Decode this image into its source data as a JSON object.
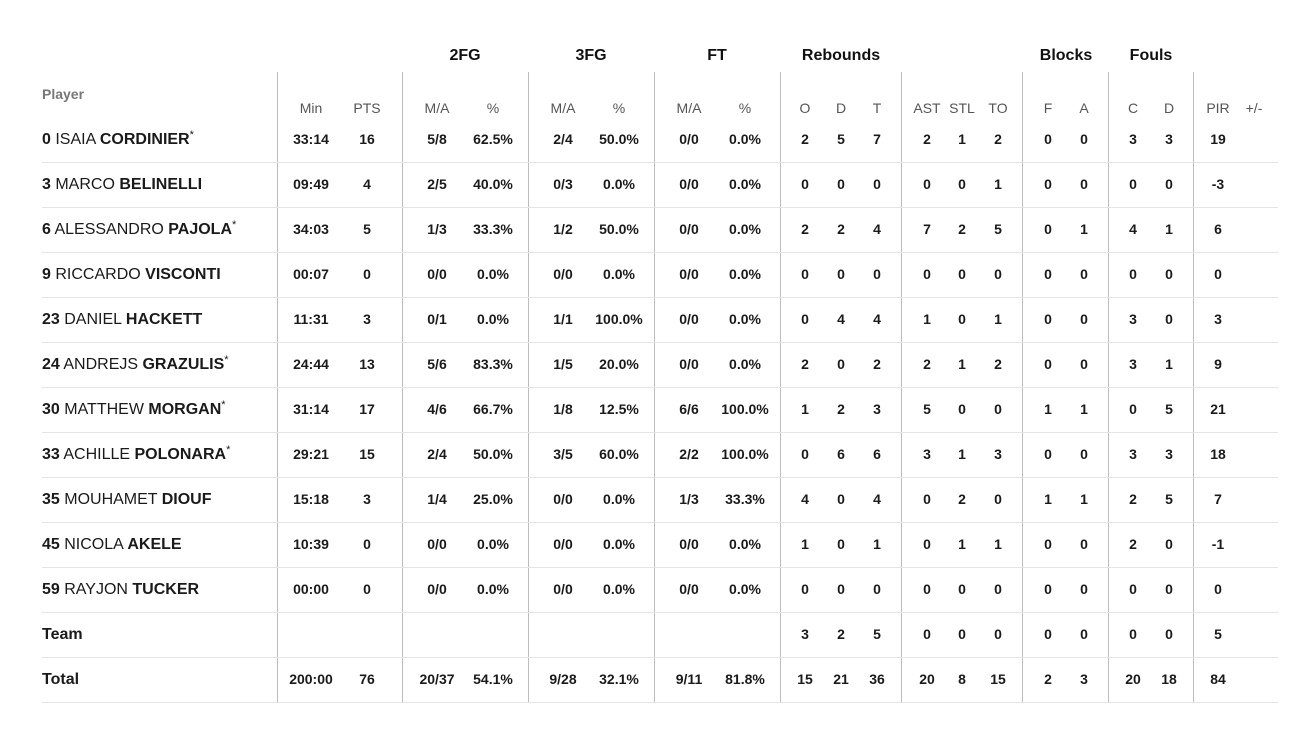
{
  "header": {
    "player_label": "Player",
    "groups": [
      "2FG",
      "3FG",
      "FT",
      "Rebounds",
      "Blocks",
      "Fouls"
    ],
    "columns": [
      "Min",
      "PTS",
      "M/A",
      "%",
      "M/A",
      "%",
      "M/A",
      "%",
      "O",
      "D",
      "T",
      "AST",
      "STL",
      "TO",
      "F",
      "A",
      "C",
      "D",
      "PIR",
      "+/-"
    ]
  },
  "players": [
    {
      "num": "0",
      "first": "ISAIA",
      "last": "CORDINIER",
      "star": "*",
      "stats": [
        "33:14",
        "16",
        "5/8",
        "62.5%",
        "2/4",
        "50.0%",
        "0/0",
        "0.0%",
        "2",
        "5",
        "7",
        "2",
        "1",
        "2",
        "0",
        "0",
        "3",
        "3",
        "19",
        ""
      ]
    },
    {
      "num": "3",
      "first": "MARCO",
      "last": "BELINELLI",
      "star": "",
      "stats": [
        "09:49",
        "4",
        "2/5",
        "40.0%",
        "0/3",
        "0.0%",
        "0/0",
        "0.0%",
        "0",
        "0",
        "0",
        "0",
        "0",
        "1",
        "0",
        "0",
        "0",
        "0",
        "-3",
        ""
      ]
    },
    {
      "num": "6",
      "first": "ALESSANDRO",
      "last": "PAJOLA",
      "star": "*",
      "stats": [
        "34:03",
        "5",
        "1/3",
        "33.3%",
        "1/2",
        "50.0%",
        "0/0",
        "0.0%",
        "2",
        "2",
        "4",
        "7",
        "2",
        "5",
        "0",
        "1",
        "4",
        "1",
        "6",
        ""
      ]
    },
    {
      "num": "9",
      "first": "RICCARDO",
      "last": "VISCONTI",
      "star": "",
      "stats": [
        "00:07",
        "0",
        "0/0",
        "0.0%",
        "0/0",
        "0.0%",
        "0/0",
        "0.0%",
        "0",
        "0",
        "0",
        "0",
        "0",
        "0",
        "0",
        "0",
        "0",
        "0",
        "0",
        ""
      ]
    },
    {
      "num": "23",
      "first": "DANIEL",
      "last": "HACKETT",
      "star": "",
      "stats": [
        "11:31",
        "3",
        "0/1",
        "0.0%",
        "1/1",
        "100.0%",
        "0/0",
        "0.0%",
        "0",
        "4",
        "4",
        "1",
        "0",
        "1",
        "0",
        "0",
        "3",
        "0",
        "3",
        ""
      ]
    },
    {
      "num": "24",
      "first": "ANDREJS",
      "last": "GRAZULIS",
      "star": "*",
      "stats": [
        "24:44",
        "13",
        "5/6",
        "83.3%",
        "1/5",
        "20.0%",
        "0/0",
        "0.0%",
        "2",
        "0",
        "2",
        "2",
        "1",
        "2",
        "0",
        "0",
        "3",
        "1",
        "9",
        ""
      ]
    },
    {
      "num": "30",
      "first": "MATTHEW",
      "last": "MORGAN",
      "star": "*",
      "stats": [
        "31:14",
        "17",
        "4/6",
        "66.7%",
        "1/8",
        "12.5%",
        "6/6",
        "100.0%",
        "1",
        "2",
        "3",
        "5",
        "0",
        "0",
        "1",
        "1",
        "0",
        "5",
        "21",
        ""
      ]
    },
    {
      "num": "33",
      "first": "ACHILLE",
      "last": "POLONARA",
      "star": "*",
      "stats": [
        "29:21",
        "15",
        "2/4",
        "50.0%",
        "3/5",
        "60.0%",
        "2/2",
        "100.0%",
        "0",
        "6",
        "6",
        "3",
        "1",
        "3",
        "0",
        "0",
        "3",
        "3",
        "18",
        ""
      ]
    },
    {
      "num": "35",
      "first": "MOUHAMET",
      "last": "DIOUF",
      "star": "",
      "stats": [
        "15:18",
        "3",
        "1/4",
        "25.0%",
        "0/0",
        "0.0%",
        "1/3",
        "33.3%",
        "4",
        "0",
        "4",
        "0",
        "2",
        "0",
        "1",
        "1",
        "2",
        "5",
        "7",
        ""
      ]
    },
    {
      "num": "45",
      "first": "NICOLA",
      "last": "AKELE",
      "star": "",
      "stats": [
        "10:39",
        "0",
        "0/0",
        "0.0%",
        "0/0",
        "0.0%",
        "0/0",
        "0.0%",
        "1",
        "0",
        "1",
        "0",
        "1",
        "1",
        "0",
        "0",
        "2",
        "0",
        "-1",
        ""
      ]
    },
    {
      "num": "59",
      "first": "RAYJON",
      "last": "TUCKER",
      "star": "",
      "stats": [
        "00:00",
        "0",
        "0/0",
        "0.0%",
        "0/0",
        "0.0%",
        "0/0",
        "0.0%",
        "0",
        "0",
        "0",
        "0",
        "0",
        "0",
        "0",
        "0",
        "0",
        "0",
        "0",
        ""
      ]
    }
  ],
  "team": {
    "label": "Team",
    "stats": [
      "",
      "",
      "",
      "",
      "",
      "",
      "",
      "",
      "3",
      "2",
      "5",
      "0",
      "0",
      "0",
      "0",
      "0",
      "0",
      "0",
      "5",
      ""
    ]
  },
  "total": {
    "label": "Total",
    "stats": [
      "200:00",
      "76",
      "20/37",
      "54.1%",
      "9/28",
      "32.1%",
      "9/11",
      "81.8%",
      "15",
      "21",
      "36",
      "20",
      "8",
      "15",
      "2",
      "3",
      "20",
      "18",
      "84",
      ""
    ]
  }
}
